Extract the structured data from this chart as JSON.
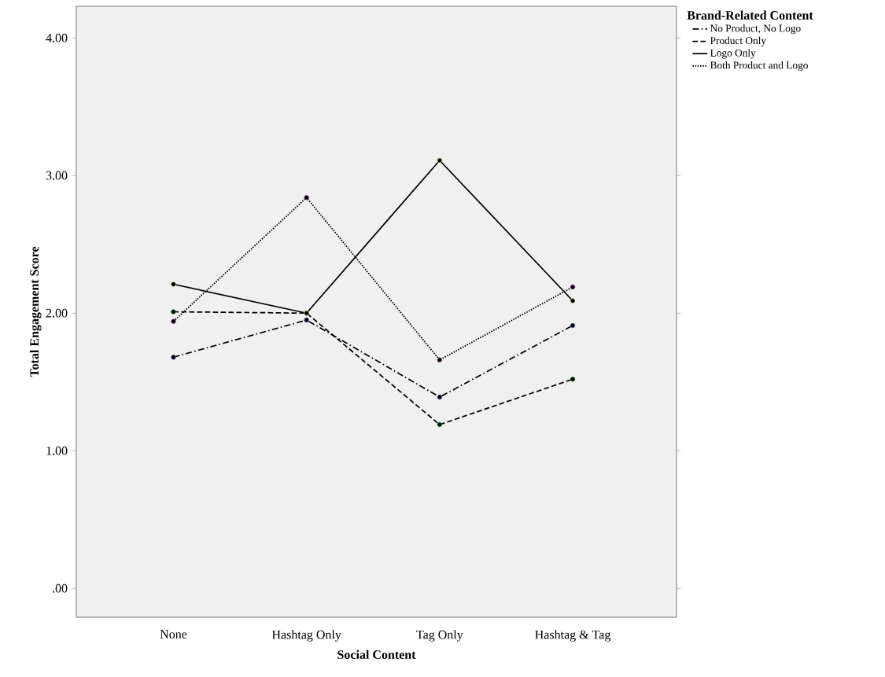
{
  "chart_data": {
    "type": "line",
    "xlabel": "Social Content",
    "ylabel": "Total Engagement Score",
    "legend_title": "Brand-Related Content",
    "categories": [
      "None",
      "Hashtag Only",
      "Tag Only",
      "Hashtag & Tag"
    ],
    "ylim": [
      -0.21,
      4.23
    ],
    "yticks": [
      {
        "value": 0,
        "label": ".00"
      },
      {
        "value": 1,
        "label": "1.00"
      },
      {
        "value": 2,
        "label": "2.00"
      },
      {
        "value": 3,
        "label": "3.00"
      },
      {
        "value": 4,
        "label": "4.00"
      }
    ],
    "legend": "top right",
    "marker": "circle",
    "series": [
      {
        "name": "No Product, No Logo",
        "color": "#000000",
        "line_style": "dashdot",
        "values": [
          1.68,
          1.95,
          1.39,
          1.91
        ]
      },
      {
        "name": "Product Only",
        "color": "#000000",
        "line_style": "dashed",
        "values": [
          2.01,
          2.0,
          1.19,
          1.52
        ]
      },
      {
        "name": "Logo Only",
        "color": "#000000",
        "line_style": "solid",
        "values": [
          2.21,
          2.0,
          3.11,
          2.09
        ]
      },
      {
        "name": "Both Product and Logo",
        "color": "#000000",
        "line_style": "dotted",
        "values": [
          1.94,
          2.84,
          1.66,
          2.19
        ]
      }
    ]
  }
}
